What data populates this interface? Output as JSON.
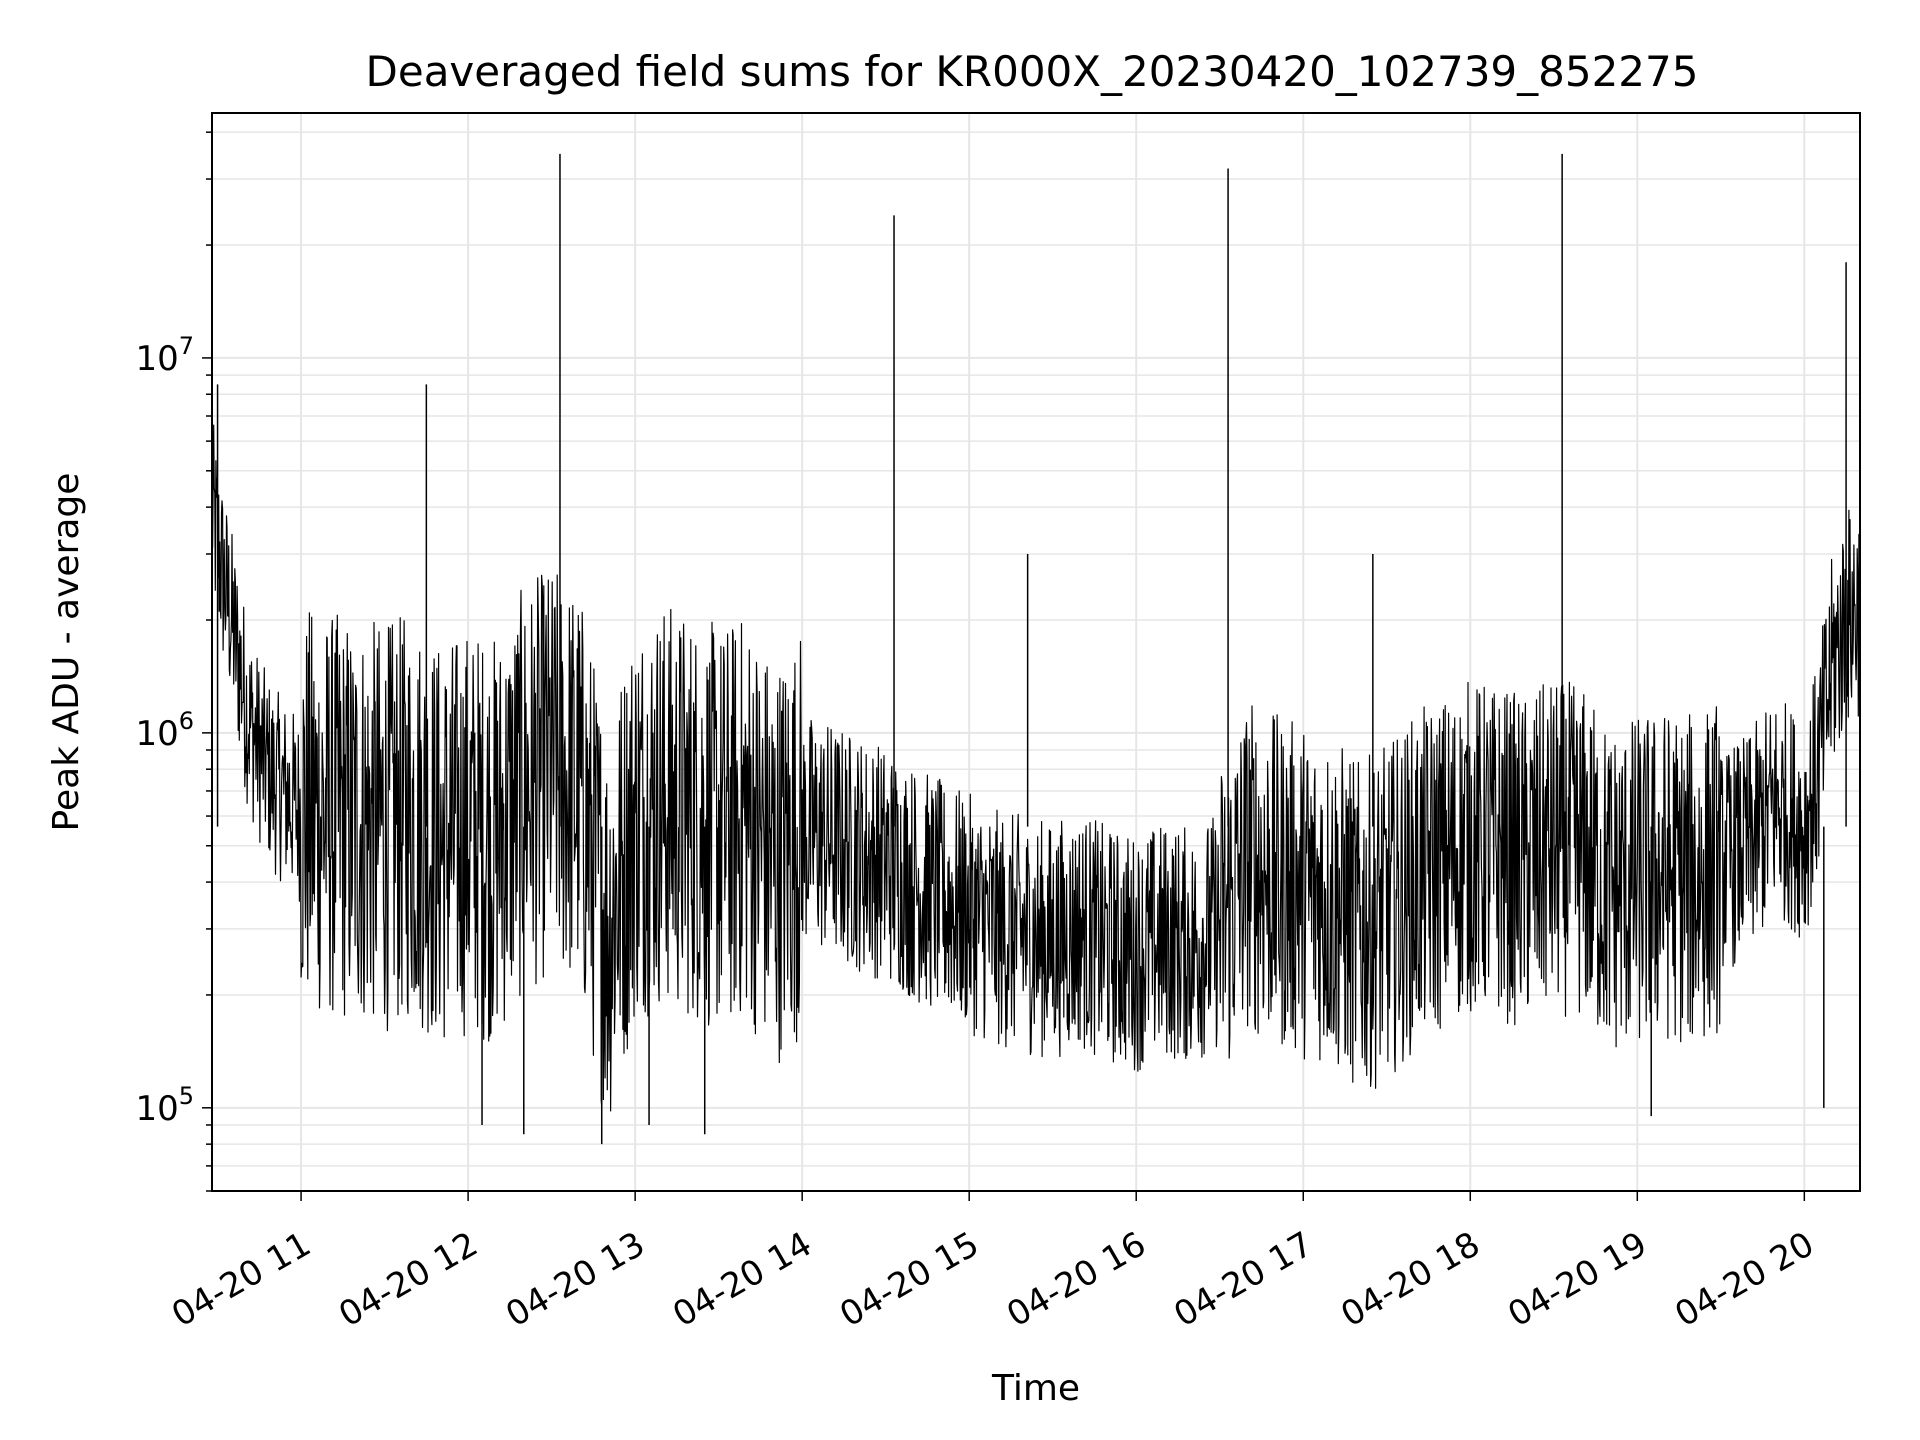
{
  "chart_data": {
    "type": "line",
    "title": "Deaveraged field sums for KR000X_20230420_102739_852275",
    "xlabel": "Time",
    "ylabel": "Peak ADU - average",
    "yscale": "log",
    "ylim": [
      60000,
      45000000
    ],
    "xlim": [
      "2023-04-20 10:28",
      "2023-04-20 20:20"
    ],
    "grid": true,
    "line_color": "#000000",
    "x_ticks": [
      {
        "value": "2023-04-20 11:00",
        "label": "04-20 11"
      },
      {
        "value": "2023-04-20 12:00",
        "label": "04-20 12"
      },
      {
        "value": "2023-04-20 13:00",
        "label": "04-20 13"
      },
      {
        "value": "2023-04-20 14:00",
        "label": "04-20 14"
      },
      {
        "value": "2023-04-20 15:00",
        "label": "04-20 15"
      },
      {
        "value": "2023-04-20 16:00",
        "label": "04-20 16"
      },
      {
        "value": "2023-04-20 17:00",
        "label": "04-20 17"
      },
      {
        "value": "2023-04-20 18:00",
        "label": "04-20 18"
      },
      {
        "value": "2023-04-20 19:00",
        "label": "04-20 19"
      },
      {
        "value": "2023-04-20 20:00",
        "label": "04-20 20"
      }
    ],
    "y_ticks": [
      {
        "value": 100000,
        "base": "10",
        "exp": "5"
      },
      {
        "value": 1000000,
        "base": "10",
        "exp": "6"
      },
      {
        "value": 10000000,
        "base": "10",
        "exp": "7"
      }
    ],
    "series": [
      {
        "points": [
          [
            "2023-04-20 10:28",
            4000000
          ],
          [
            "2023-04-20 10:30",
            3200000
          ],
          [
            "2023-04-20 10:32",
            2600000
          ],
          [
            "2023-04-20 10:35",
            2000000
          ],
          [
            "2023-04-20 10:38",
            1500000
          ],
          [
            "2023-04-20 10:41",
            1100000
          ],
          [
            "2023-04-20 10:45",
            900000
          ],
          [
            "2023-04-20 10:50",
            750000
          ],
          [
            "2023-04-20 10:55",
            680000
          ],
          [
            "2023-04-20 11:00",
            620000
          ],
          [
            "2023-04-20 11:10",
            600000
          ],
          [
            "2023-04-20 11:20",
            580000
          ],
          [
            "2023-04-20 11:30",
            560000
          ],
          [
            "2023-04-20 11:40",
            600000
          ],
          [
            "2023-04-20 11:50",
            500000
          ],
          [
            "2023-04-20 12:00",
            550000
          ],
          [
            "2023-04-20 12:10",
            520000
          ],
          [
            "2023-04-20 12:20",
            700000
          ],
          [
            "2023-04-20 12:30",
            800000
          ],
          [
            "2023-04-20 12:40",
            700000
          ],
          [
            "2023-04-20 12:50",
            300000
          ],
          [
            "2023-04-20 13:00",
            600000
          ],
          [
            "2023-04-20 13:10",
            650000
          ],
          [
            "2023-04-20 13:20",
            600000
          ],
          [
            "2023-04-20 13:30",
            550000
          ],
          [
            "2023-04-20 13:40",
            600000
          ],
          [
            "2023-04-20 13:50",
            450000
          ],
          [
            "2023-04-20 14:00",
            550000
          ],
          [
            "2023-04-20 14:10",
            520000
          ],
          [
            "2023-04-20 14:20",
            480000
          ],
          [
            "2023-04-20 14:30",
            450000
          ],
          [
            "2023-04-20 14:40",
            400000
          ],
          [
            "2023-04-20 14:50",
            360000
          ],
          [
            "2023-04-20 15:00",
            330000
          ],
          [
            "2023-04-20 15:10",
            300000
          ],
          [
            "2023-04-20 15:20",
            290000
          ],
          [
            "2023-04-20 15:30",
            280000
          ],
          [
            "2023-04-20 15:40",
            300000
          ],
          [
            "2023-04-20 15:50",
            270000
          ],
          [
            "2023-04-20 16:00",
            260000
          ],
          [
            "2023-04-20 16:10",
            280000
          ],
          [
            "2023-04-20 16:20",
            270000
          ],
          [
            "2023-04-20 16:30",
            300000
          ],
          [
            "2023-04-20 16:40",
            450000
          ],
          [
            "2023-04-20 16:50",
            400000
          ],
          [
            "2023-04-20 17:00",
            380000
          ],
          [
            "2023-04-20 17:10",
            360000
          ],
          [
            "2023-04-20 17:20",
            300000
          ],
          [
            "2023-04-20 17:30",
            330000
          ],
          [
            "2023-04-20 17:40",
            400000
          ],
          [
            "2023-04-20 17:50",
            450000
          ],
          [
            "2023-04-20 18:00",
            500000
          ],
          [
            "2023-04-20 18:10",
            480000
          ],
          [
            "2023-04-20 18:20",
            450000
          ],
          [
            "2023-04-20 18:30",
            500000
          ],
          [
            "2023-04-20 18:40",
            480000
          ],
          [
            "2023-04-20 18:50",
            380000
          ],
          [
            "2023-04-20 19:00",
            400000
          ],
          [
            "2023-04-20 19:10",
            420000
          ],
          [
            "2023-04-20 19:20",
            400000
          ],
          [
            "2023-04-20 19:30",
            450000
          ],
          [
            "2023-04-20 19:40",
            500000
          ],
          [
            "2023-04-20 19:50",
            650000
          ],
          [
            "2023-04-20 20:00",
            550000
          ],
          [
            "2023-04-20 20:05",
            800000
          ],
          [
            "2023-04-20 20:10",
            1500000
          ],
          [
            "2023-04-20 20:15",
            2000000
          ],
          [
            "2023-04-20 20:20",
            2200000
          ]
        ]
      }
    ],
    "spikes": [
      [
        "2023-04-20 10:30",
        8500000
      ],
      [
        "2023-04-20 11:45",
        8500000
      ],
      [
        "2023-04-20 12:33",
        35000000
      ],
      [
        "2023-04-20 14:33",
        24000000
      ],
      [
        "2023-04-20 15:21",
        3000000
      ],
      [
        "2023-04-20 16:33",
        32000000
      ],
      [
        "2023-04-20 17:25",
        3000000
      ],
      [
        "2023-04-20 18:33",
        35000000
      ],
      [
        "2023-04-20 20:15",
        18000000
      ],
      [
        "2023-04-20 12:05",
        90000
      ],
      [
        "2023-04-20 12:20",
        85000
      ],
      [
        "2023-04-20 12:48",
        80000
      ],
      [
        "2023-04-20 13:05",
        90000
      ],
      [
        "2023-04-20 13:25",
        85000
      ],
      [
        "2023-04-20 19:05",
        95000
      ],
      [
        "2023-04-20 20:07",
        100000
      ]
    ]
  }
}
